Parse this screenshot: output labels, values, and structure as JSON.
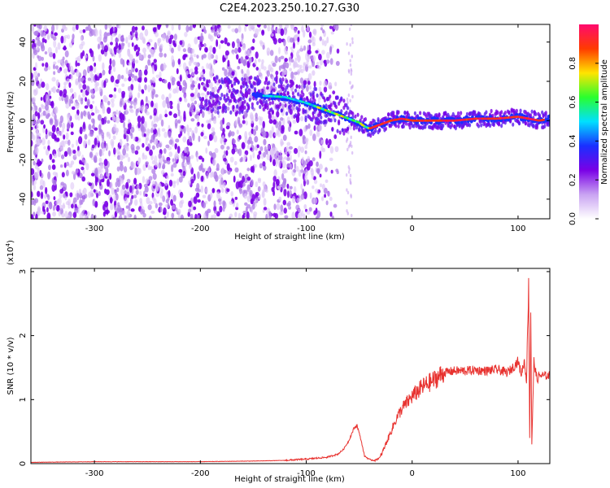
{
  "figure_title": "C2E4.2023.250.10.27.G30",
  "chart_data": [
    {
      "type": "heatmap",
      "xlabel": "Height of straight line (km)",
      "ylabel": "Frequency (Hz)",
      "xlim": [
        -360,
        130
      ],
      "ylim": [
        -50,
        49
      ],
      "x_ticks": [
        -300,
        -200,
        -100,
        0,
        100
      ],
      "y_ticks": [
        -40,
        -20,
        0,
        20,
        40
      ],
      "colorbar": {
        "label": "Normalized spectral amplitude",
        "range": [
          0,
          1
        ],
        "ticks": [
          0.0,
          0.2,
          0.4,
          0.6,
          0.8
        ],
        "tick_labels": [
          "0.0",
          "0.2",
          "0.4",
          "0.6",
          "0.8"
        ],
        "colormap": [
          "#ffffff",
          "#c9a3f2",
          "#7a00e6",
          "#1a2fff",
          "#00e0ff",
          "#29ff2e",
          "#ffe400",
          "#ff3b00",
          "#ff0a6e"
        ]
      },
      "ridge": {
        "name": "dominant frequency",
        "x": [
          -150,
          -120,
          -100,
          -90,
          -80,
          -70,
          -60,
          -50,
          -45,
          -40,
          -30,
          -20,
          -10,
          0,
          20,
          40,
          60,
          80,
          100,
          110,
          120,
          130
        ],
        "y": [
          13,
          12,
          9,
          7,
          5,
          3,
          1,
          -1,
          -3,
          -4,
          -2,
          0,
          1,
          0,
          0,
          0,
          1,
          1,
          2,
          1,
          0,
          1
        ]
      },
      "noise_extent_x": [
        -360,
        -100
      ],
      "grid": false
    },
    {
      "type": "line",
      "xlabel": "Height of straight line (km)",
      "ylabel": "SNR (10 * v/v)",
      "y_multiplier": "(x10",
      "y_multiplier_exp": "4",
      "xlim": [
        -360,
        130
      ],
      "ylim": [
        0,
        3.05
      ],
      "x_ticks": [
        -300,
        -200,
        -100,
        0,
        100
      ],
      "y_ticks": [
        0,
        1,
        2,
        3
      ],
      "series": [
        {
          "color": "#e8322f",
          "x": [
            -360,
            -300,
            -200,
            -150,
            -120,
            -100,
            -80,
            -70,
            -65,
            -60,
            -55,
            -52,
            -48,
            -45,
            -40,
            -35,
            -30,
            -25,
            -20,
            -15,
            -10,
            -5,
            0,
            10,
            20,
            30,
            40,
            50,
            60,
            70,
            80,
            90,
            95,
            100,
            103,
            106,
            108,
            110,
            111,
            112,
            113,
            115,
            118,
            120,
            125,
            130
          ],
          "y": [
            0.02,
            0.03,
            0.03,
            0.04,
            0.05,
            0.07,
            0.1,
            0.15,
            0.22,
            0.35,
            0.55,
            0.6,
            0.35,
            0.12,
            0.06,
            0.05,
            0.1,
            0.3,
            0.5,
            0.7,
            0.85,
            0.95,
            1.05,
            1.2,
            1.3,
            1.42,
            1.45,
            1.45,
            1.46,
            1.45,
            1.47,
            1.42,
            1.5,
            1.6,
            1.4,
            1.6,
            1.3,
            2.8,
            0.4,
            2.4,
            0.3,
            1.6,
            1.3,
            1.38,
            1.37,
            1.38
          ]
        }
      ],
      "grid": false
    }
  ]
}
